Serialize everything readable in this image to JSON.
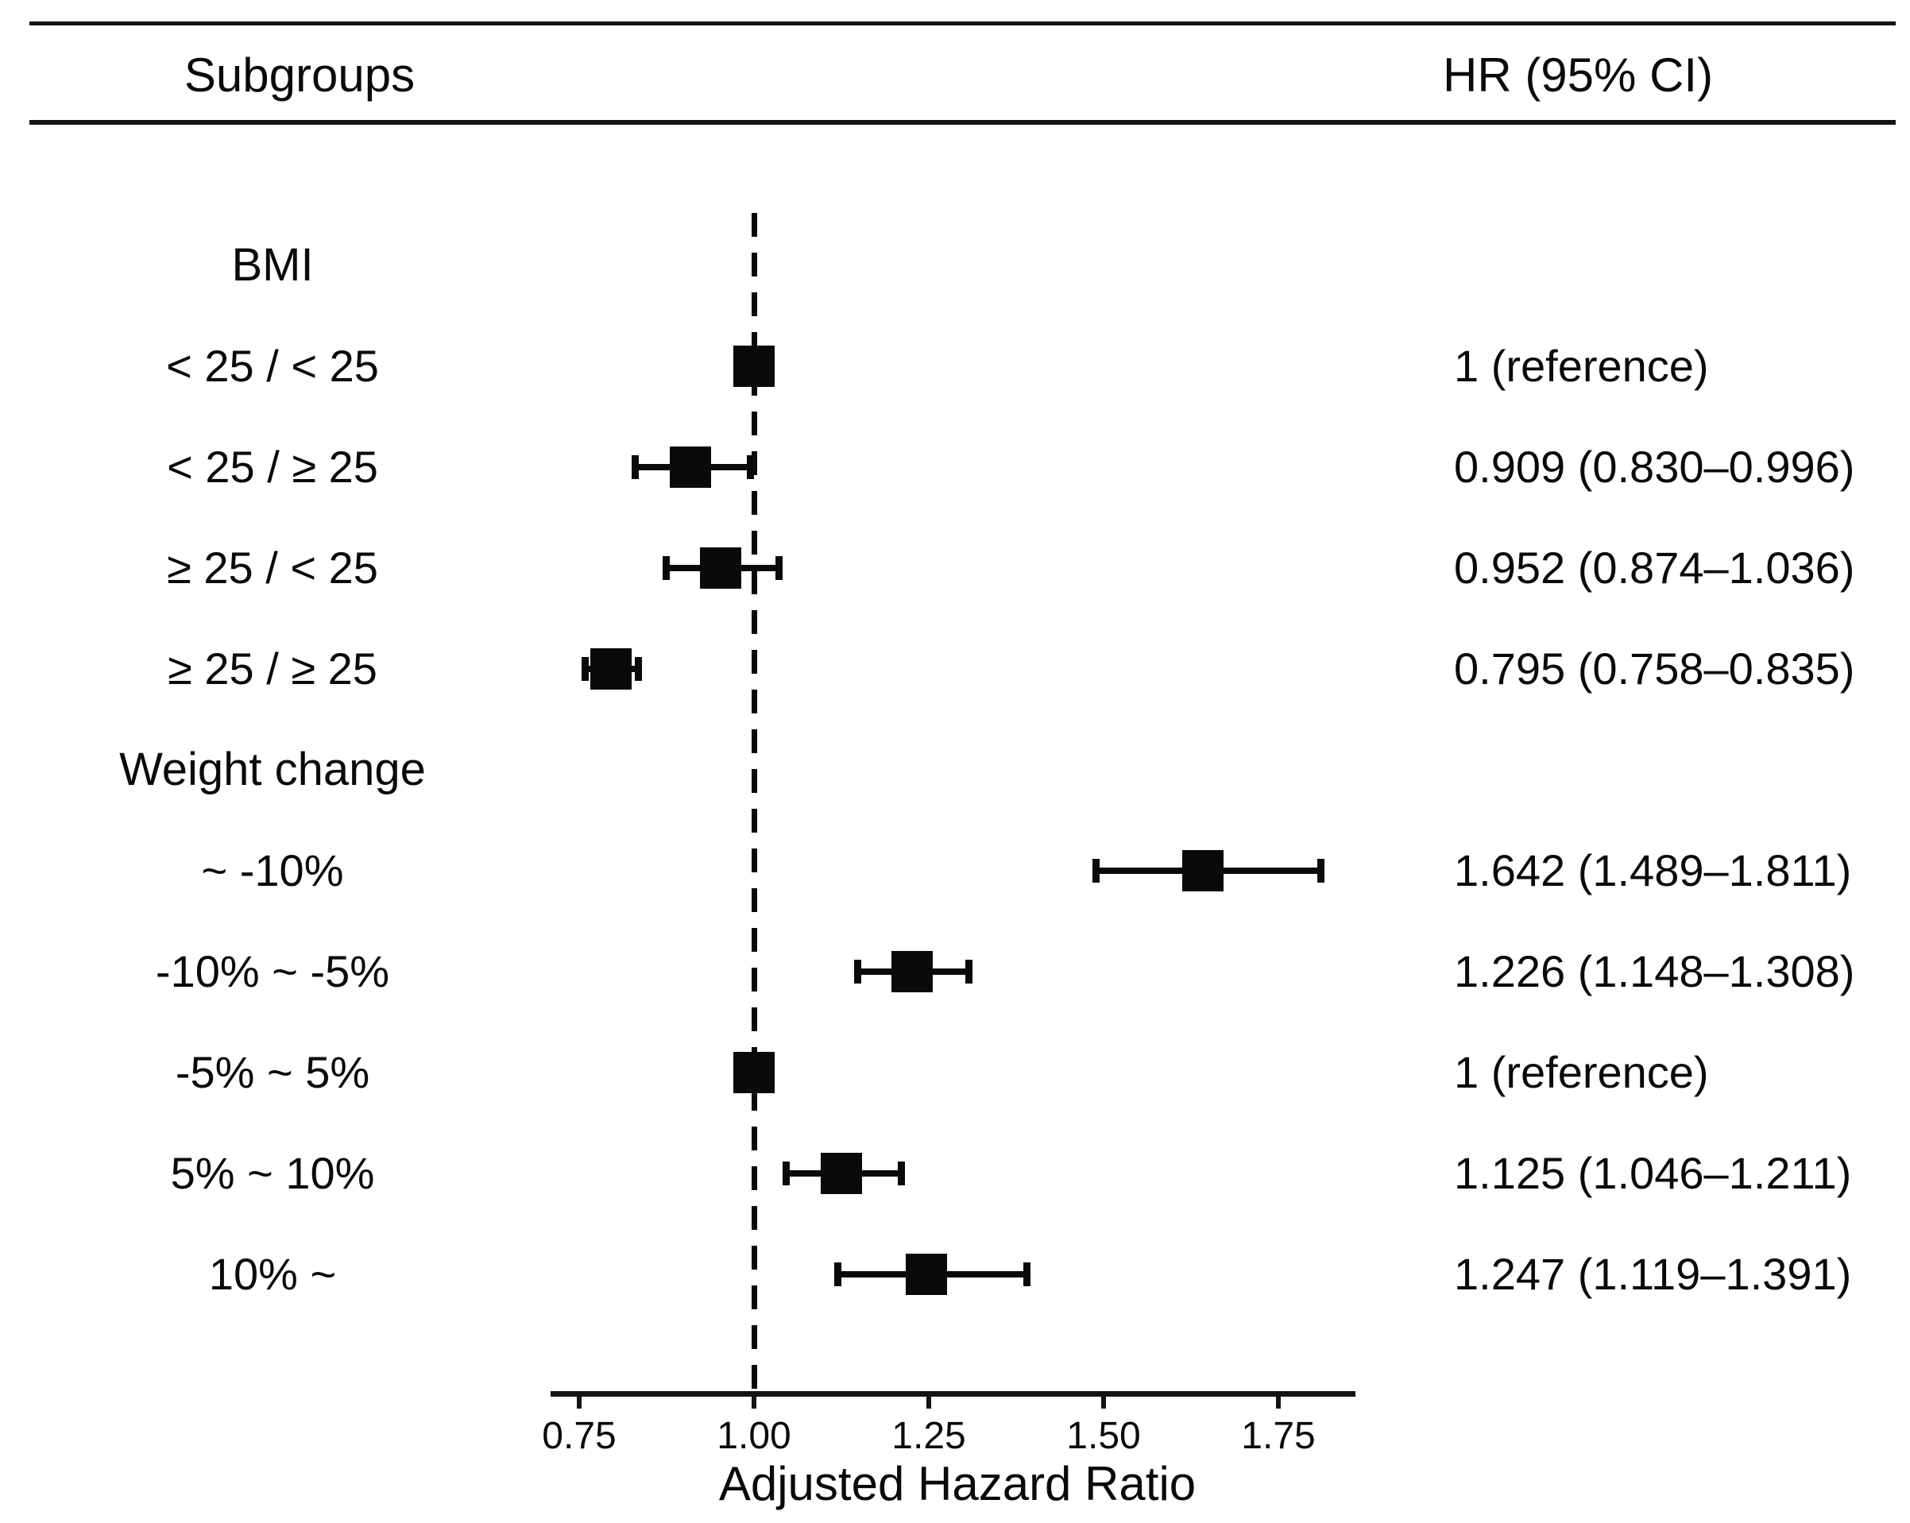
{
  "table_header": {
    "subgroups_label": "Subgroups",
    "hr_label": "HR (95% CI)"
  },
  "colors": {
    "ink": "#0a0a0a",
    "background": "#ffffff"
  },
  "chart_data": {
    "type": "forest",
    "xlabel": "Adjusted Hazard Ratio",
    "x_ticks": [
      0.75,
      1.0,
      1.25,
      1.5,
      1.75
    ],
    "x_tick_labels": [
      "0.75",
      "1.00",
      "1.25",
      "1.50",
      "1.75"
    ],
    "xlim": [
      0.71,
      1.86
    ],
    "reference_line": 1.0,
    "grid": false,
    "legend": "none",
    "rows": [
      {
        "type": "header",
        "label": "BMI"
      },
      {
        "type": "item",
        "label": "< 25 / < 25",
        "hr": 1.0,
        "ci_low": null,
        "ci_high": null,
        "hr_text": "1 (reference)",
        "reference": true
      },
      {
        "type": "item",
        "label": "< 25 / ≥ 25",
        "hr": 0.909,
        "ci_low": 0.83,
        "ci_high": 0.996,
        "hr_text": "0.909 (0.830–0.996)",
        "reference": false
      },
      {
        "type": "item",
        "label": "≥ 25 / < 25",
        "hr": 0.952,
        "ci_low": 0.874,
        "ci_high": 1.036,
        "hr_text": "0.952 (0.874–1.036)",
        "reference": false
      },
      {
        "type": "item",
        "label": "≥ 25 / ≥ 25",
        "hr": 0.795,
        "ci_low": 0.758,
        "ci_high": 0.835,
        "hr_text": "0.795 (0.758–0.835)",
        "reference": false
      },
      {
        "type": "header",
        "label": "Weight change"
      },
      {
        "type": "item",
        "label": "~ -10%",
        "hr": 1.642,
        "ci_low": 1.489,
        "ci_high": 1.811,
        "hr_text": "1.642 (1.489–1.811)",
        "reference": false
      },
      {
        "type": "item",
        "label": "-10% ~ -5%",
        "hr": 1.226,
        "ci_low": 1.148,
        "ci_high": 1.308,
        "hr_text": "1.226 (1.148–1.308)",
        "reference": false
      },
      {
        "type": "item",
        "label": "-5% ~ 5%",
        "hr": 1.0,
        "ci_low": null,
        "ci_high": null,
        "hr_text": "1 (reference)",
        "reference": true
      },
      {
        "type": "item",
        "label": "5% ~ 10%",
        "hr": 1.125,
        "ci_low": 1.046,
        "ci_high": 1.211,
        "hr_text": "1.125 (1.046–1.211)",
        "reference": false
      },
      {
        "type": "item",
        "label": "10% ~",
        "hr": 1.247,
        "ci_low": 1.119,
        "ci_high": 1.391,
        "hr_text": "1.247 (1.119–1.391)",
        "reference": false
      }
    ]
  }
}
